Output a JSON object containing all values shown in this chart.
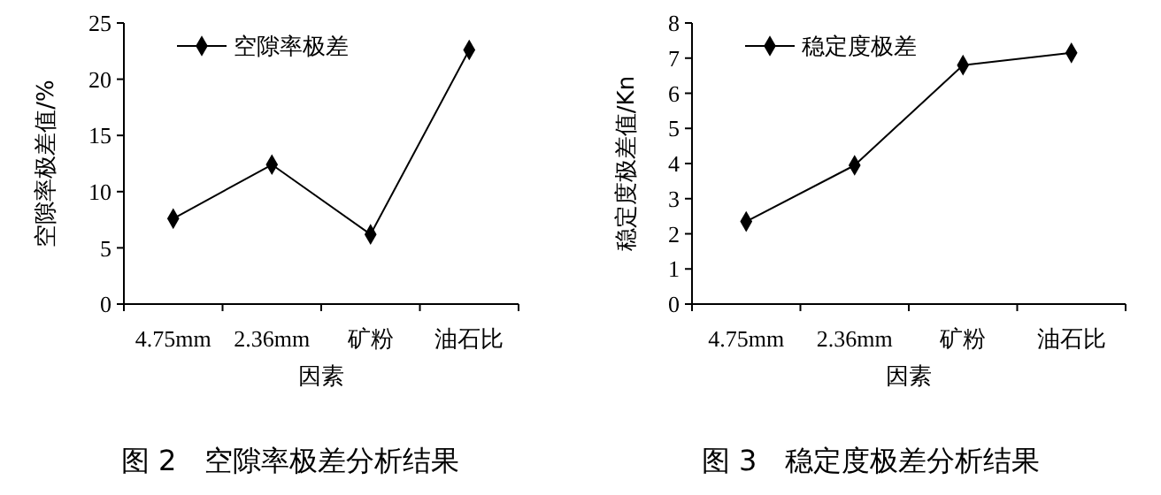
{
  "chart_data": [
    {
      "type": "line",
      "xlabel": "因素",
      "ylabel": "空隙率极差值/%",
      "categories": [
        "4.75mm",
        "2.36mm",
        "矿粉",
        "油石比"
      ],
      "series": [
        {
          "name": "空隙率极差",
          "color": "#000000",
          "values": [
            7.6,
            12.4,
            6.2,
            22.6
          ]
        }
      ],
      "ylim": [
        0,
        25
      ],
      "yticks": [
        0,
        5,
        10,
        15,
        20,
        25
      ],
      "grid": false,
      "legend": "top left",
      "marker": "diamond",
      "line_style": "solid",
      "annotations": [
        "图 2　空隙率极差分析结果"
      ]
    },
    {
      "type": "line",
      "xlabel": "因素",
      "ylabel": "稳定度极差值/Kn",
      "categories": [
        "4.75mm",
        "2.36mm",
        "矿粉",
        "油石比"
      ],
      "series": [
        {
          "name": "稳定度极差",
          "color": "#000000",
          "values": [
            2.35,
            3.95,
            6.8,
            7.15
          ]
        }
      ],
      "ylim": [
        0,
        8
      ],
      "yticks": [
        0,
        1,
        2,
        3,
        4,
        5,
        6,
        7,
        8
      ],
      "grid": false,
      "legend": "top left",
      "marker": "diamond",
      "line_style": "solid",
      "annotations": [
        "图 3　稳定度极差分析结果"
      ]
    }
  ]
}
